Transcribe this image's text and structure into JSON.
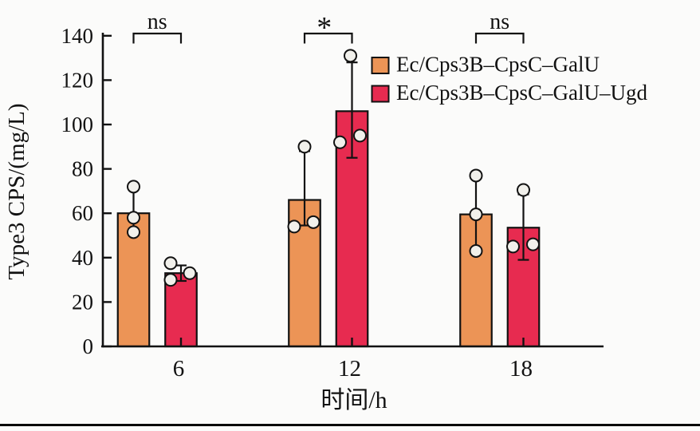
{
  "figure": {
    "background": "#fbfbfa",
    "axis_color": "#121212",
    "point_fill": "#f1f0eb",
    "bottom_rule": "page-divider-line"
  },
  "chart_data": {
    "type": "bar",
    "title": "",
    "xlabel": "时间/h",
    "ylabel": "Type3 CPS/(mg/L)",
    "categories": [
      "6",
      "12",
      "18"
    ],
    "ylim": [
      0,
      140
    ],
    "ytick_step": 20,
    "yticks": [
      0,
      20,
      40,
      60,
      80,
      100,
      120,
      140
    ],
    "grid": false,
    "legend_position": "upper-right-inside",
    "point_style": "open-circle",
    "series": [
      {
        "name": "Ec/Cps3B–CpsC–GalU",
        "color": "#EC9456",
        "means": [
          60,
          66,
          59.5
        ],
        "whisker_low": [
          51.5,
          54.5,
          43
        ],
        "whisker_high": [
          72,
          88,
          77
        ],
        "points": [
          [
            72,
            58,
            51.5
          ],
          [
            90,
            56,
            54
          ],
          [
            77,
            59.5,
            43
          ]
        ],
        "point_dx": [
          [
            0,
            0,
            0
          ],
          [
            0,
            11,
            -13
          ],
          [
            0,
            0,
            0
          ]
        ]
      },
      {
        "name": "Ec/Cps3B–CpsC–GalU–Ugd",
        "color": "#E72B50",
        "means": [
          33,
          106,
          53.5
        ],
        "whisker_low": [
          29.5,
          85,
          39
        ],
        "whisker_high": [
          36.5,
          128,
          68.5
        ],
        "points": [
          [
            37.5,
            33,
            30
          ],
          [
            131,
            95,
            92
          ],
          [
            70.5,
            46,
            45
          ]
        ],
        "point_dx": [
          [
            -13,
            11,
            -13
          ],
          [
            -2,
            10,
            -15
          ],
          [
            0,
            12,
            -13
          ]
        ]
      }
    ],
    "significance": [
      {
        "group": "6",
        "label": "ns"
      },
      {
        "group": "12",
        "label": "*"
      },
      {
        "group": "18",
        "label": "ns"
      }
    ]
  }
}
